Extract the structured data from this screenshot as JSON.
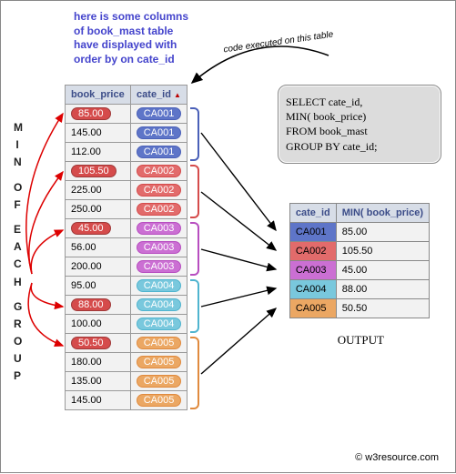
{
  "note": {
    "l1": "here is some columns",
    "l2": "of book_mast table",
    "l3": "have displayed with",
    "l4": "order by on cate_id"
  },
  "curve_label": "code executed on this table",
  "vertical_label": "MIN OF EACH GROUP",
  "src_headers": {
    "price": "book_price",
    "cate": "cate_id"
  },
  "groups": [
    {
      "color": "#4a60b8",
      "bg": "#5e75c8",
      "min_bg": "#d54b4b",
      "rows": [
        {
          "price": "85.00",
          "cate": "CA001",
          "is_min": true
        },
        {
          "price": "145.00",
          "cate": "CA001",
          "is_min": false
        },
        {
          "price": "112.00",
          "cate": "CA001",
          "is_min": false
        }
      ]
    },
    {
      "color": "#d54b4b",
      "bg": "#e26b6b",
      "min_bg": "#d54b4b",
      "rows": [
        {
          "price": "105.50",
          "cate": "CA002",
          "is_min": true
        },
        {
          "price": "225.00",
          "cate": "CA002",
          "is_min": false
        },
        {
          "price": "250.00",
          "cate": "CA002",
          "is_min": false
        }
      ]
    },
    {
      "color": "#b74ec0",
      "bg": "#cb6fd3",
      "min_bg": "#d54b4b",
      "rows": [
        {
          "price": "45.00",
          "cate": "CA003",
          "is_min": true
        },
        {
          "price": "56.00",
          "cate": "CA003",
          "is_min": false
        },
        {
          "price": "200.00",
          "cate": "CA003",
          "is_min": false
        }
      ]
    },
    {
      "color": "#4fb4cf",
      "bg": "#79c8dd",
      "min_bg": "#d54b4b",
      "rows": [
        {
          "price": "95.00",
          "cate": "CA004",
          "is_min": false
        },
        {
          "price": "88.00",
          "cate": "CA004",
          "is_min": true
        },
        {
          "price": "100.00",
          "cate": "CA004",
          "is_min": false
        }
      ]
    },
    {
      "color": "#e08a3e",
      "bg": "#eba763",
      "min_bg": "#d54b4b",
      "rows": [
        {
          "price": "50.50",
          "cate": "CA005",
          "is_min": true
        },
        {
          "price": "180.00",
          "cate": "CA005",
          "is_min": false
        },
        {
          "price": "135.00",
          "cate": "CA005",
          "is_min": false
        },
        {
          "price": "145.00",
          "cate": "CA005",
          "is_min": false
        }
      ]
    }
  ],
  "sql": {
    "l1": "SELECT cate_id,",
    "l2": "MIN( book_price)",
    "l3": "FROM book_mast",
    "l4": "GROUP BY cate_id;"
  },
  "out_headers": {
    "cate": "cate_id",
    "min": "MIN( book_price)"
  },
  "output": [
    {
      "cate": "CA001",
      "min": "85.00",
      "bg": "#5e75c8"
    },
    {
      "cate": "CA002",
      "min": "105.50",
      "bg": "#e26b6b"
    },
    {
      "cate": "CA003",
      "min": "45.00",
      "bg": "#cb6fd3"
    },
    {
      "cate": "CA004",
      "min": "88.00",
      "bg": "#79c8dd"
    },
    {
      "cate": "CA005",
      "min": "50.50",
      "bg": "#eba763"
    }
  ],
  "out_label": "OUTPUT",
  "copyright": "© w3resource.com"
}
